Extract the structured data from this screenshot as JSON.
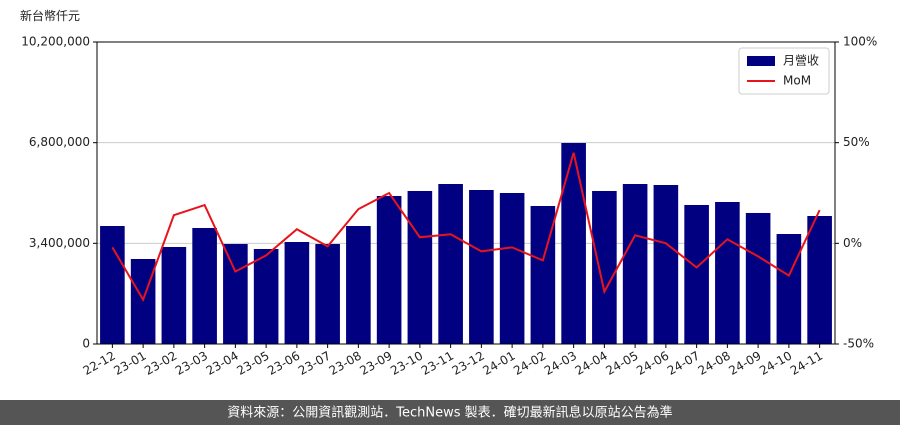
{
  "chart_data": {
    "type": "bar_line",
    "y_label": "新台幣仟元",
    "categories": [
      "22-12",
      "23-01",
      "23-02",
      "23-03",
      "23-04",
      "23-05",
      "23-06",
      "23-07",
      "23-08",
      "23-09",
      "23-10",
      "23-11",
      "23-12",
      "24-01",
      "24-02",
      "24-03",
      "24-04",
      "24-05",
      "24-06",
      "24-07",
      "24-08",
      "24-09",
      "24-10",
      "24-11"
    ],
    "series": [
      {
        "name": "月營收",
        "type": "bar",
        "color": "#000080",
        "values": [
          3985000,
          2871000,
          3276000,
          3918000,
          3377000,
          3209000,
          3445000,
          3377000,
          3985000,
          4999000,
          5168000,
          5404000,
          5201000,
          5100000,
          4661000,
          6789000,
          5168000,
          5404000,
          5370000,
          4695000,
          4796000,
          4425000,
          3715000,
          4323000
        ]
      },
      {
        "name": "MoM",
        "type": "line",
        "axis": "y2",
        "color": "#e8141c",
        "values": [
          -2,
          -28,
          14,
          19,
          -14,
          -6,
          7,
          -1.5,
          17,
          25,
          3,
          4.5,
          -4,
          -2,
          -8.5,
          45,
          -24,
          4,
          0,
          -12,
          2,
          -6.5,
          -16,
          16.5
        ]
      }
    ],
    "ylim": [
      0,
      10200000
    ],
    "yticks": [
      {
        "value": 0,
        "label": "0"
      },
      {
        "value": 3400000,
        "label": "3,400,000"
      },
      {
        "value": 6800000,
        "label": "6,800,000"
      },
      {
        "value": 10200000,
        "label": "10,200,000"
      }
    ],
    "y2lim": [
      -50,
      100
    ],
    "y2ticks": [
      {
        "value": -50,
        "label": "-50%"
      },
      {
        "value": 0,
        "label": "0%"
      },
      {
        "value": 50,
        "label": "50%"
      },
      {
        "value": 100,
        "label": "100%"
      }
    ],
    "grid": true,
    "legend": "upper right",
    "footer": "資料來源：公開資訊觀測站．TechNews 製表．確切最新訊息以原站公告為準"
  }
}
